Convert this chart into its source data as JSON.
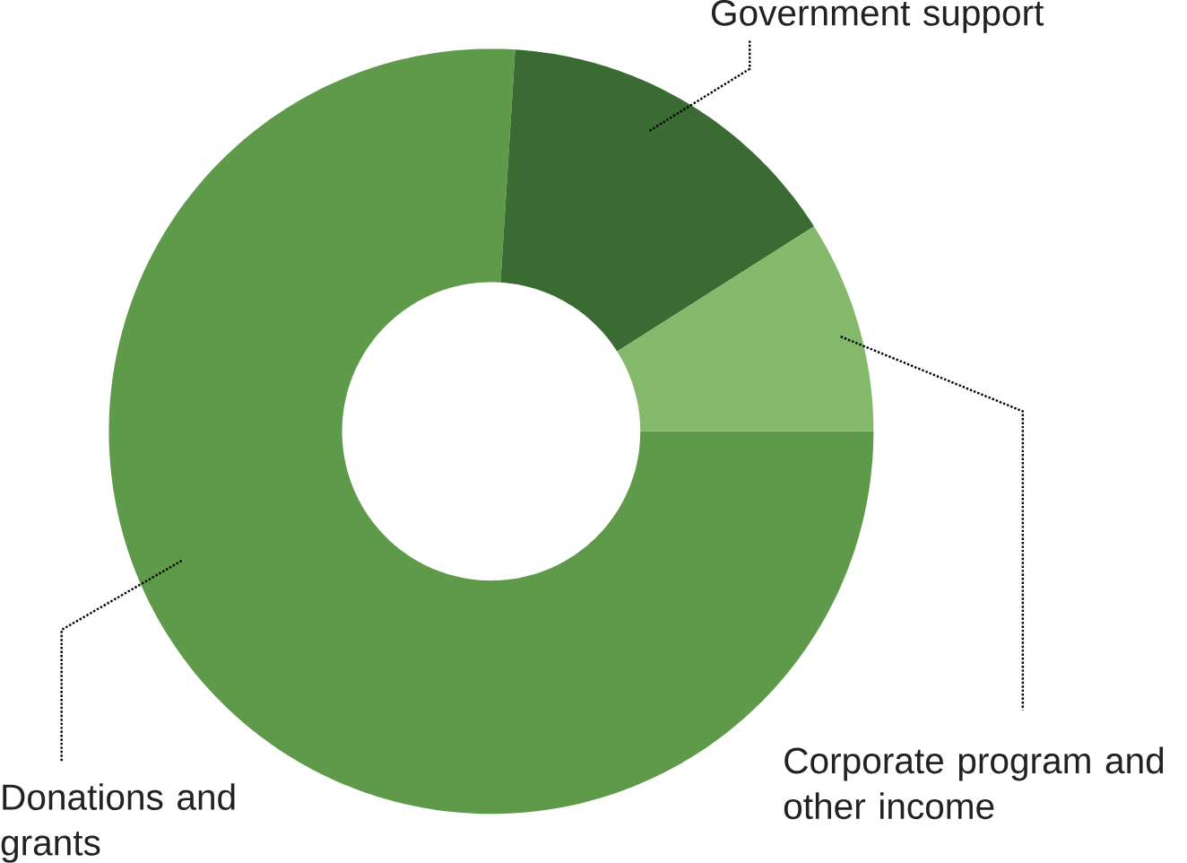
{
  "chart_data": {
    "type": "donut",
    "categories": [
      "Donations and grants",
      "Government support",
      "Corporate program and other income"
    ],
    "values": [
      76,
      15,
      9
    ],
    "colors": [
      "#5f9a4a",
      "#3a6b33",
      "#84b96c"
    ]
  }
}
